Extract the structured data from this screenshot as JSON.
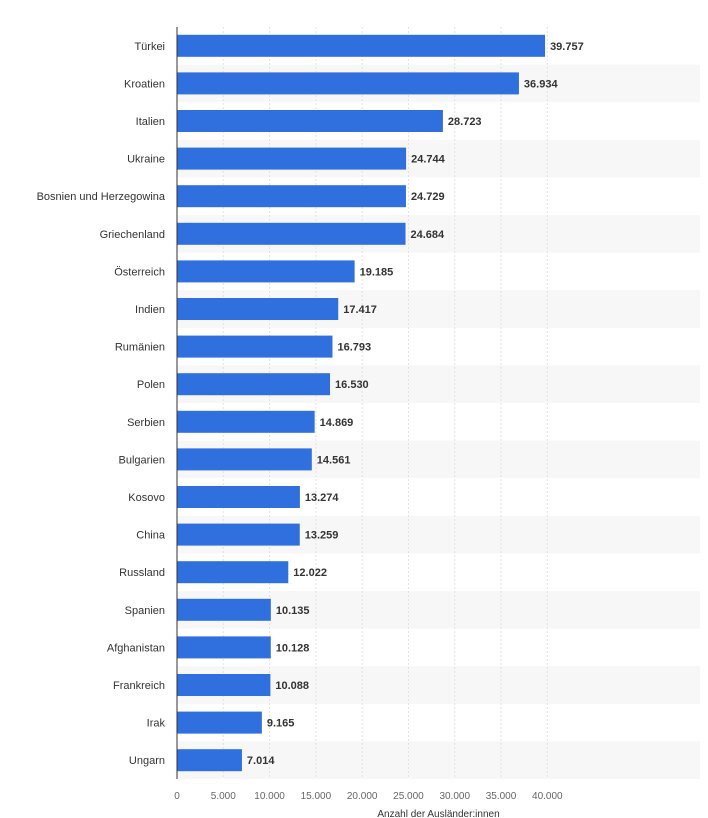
{
  "chart_data": {
    "type": "bar",
    "orientation": "horizontal",
    "categories": [
      "Türkei",
      "Kroatien",
      "Italien",
      "Ukraine",
      "Bosnien und Herzegowina",
      "Griechenland",
      "Österreich",
      "Indien",
      "Rumänien",
      "Polen",
      "Serbien",
      "Bulgarien",
      "Kosovo",
      "China",
      "Russland",
      "Spanien",
      "Afghanistan",
      "Frankreich",
      "Irak",
      "Ungarn"
    ],
    "values": [
      39757,
      36934,
      28723,
      24744,
      24729,
      24684,
      19185,
      17417,
      16793,
      16530,
      14869,
      14561,
      13274,
      13259,
      12022,
      10135,
      10128,
      10088,
      9165,
      7014
    ],
    "value_labels": [
      "39.757",
      "36.934",
      "28.723",
      "24.744",
      "24.729",
      "24.684",
      "19.185",
      "17.417",
      "16.793",
      "16.530",
      "14.869",
      "14.561",
      "13.274",
      "13.259",
      "12.022",
      "10.135",
      "10.128",
      "10.088",
      "9.165",
      "7.014"
    ],
    "xticks": [
      0,
      5000,
      10000,
      15000,
      20000,
      25000,
      30000,
      35000,
      40000
    ],
    "xtick_labels": [
      "0",
      "5.000",
      "10.000",
      "15.000",
      "20.000",
      "25.000",
      "30.000",
      "35.000",
      "40.000"
    ],
    "xlim": [
      0,
      44000
    ],
    "xlabel": "Anzahl der Ausländer:innen",
    "title": "",
    "grid": true,
    "colors": {
      "bar": "#2f6fde",
      "stripe": "#f7f7f7",
      "grid": "#e2e2e2",
      "axis": "#333333"
    }
  }
}
